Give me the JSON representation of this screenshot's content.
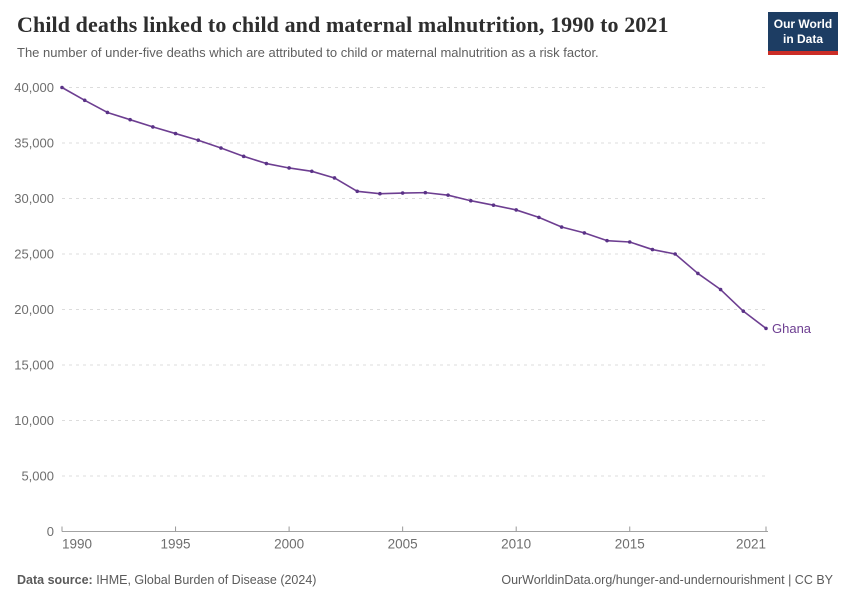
{
  "header": {
    "title": "Child deaths linked to child and maternal malnutrition, 1990 to 2021",
    "subtitle": "The number of under-five deaths which are attributed to child or maternal malnutrition as a risk factor.",
    "logo": {
      "line1": "Our World",
      "line2": "in Data",
      "bg_color": "#1d3d63",
      "accent_color": "#cb2d26"
    }
  },
  "chart_data": {
    "type": "line",
    "title": "Child deaths linked to child and maternal malnutrition, 1990 to 2021",
    "xlabel": "",
    "ylabel": "",
    "xlim": [
      1990,
      2021
    ],
    "ylim": [
      0,
      40000
    ],
    "x_ticks": [
      1990,
      1995,
      2000,
      2005,
      2010,
      2015,
      2021
    ],
    "y_ticks": [
      0,
      5000,
      10000,
      15000,
      20000,
      25000,
      30000,
      35000,
      40000
    ],
    "grid": "horizontal-dashed",
    "legend_position": "end-of-line-label",
    "series": [
      {
        "name": "Ghana",
        "color": "#6d3e91",
        "point_color": "#5a3287",
        "x": [
          1990,
          1991,
          1992,
          1993,
          1994,
          1995,
          1996,
          1997,
          1998,
          1999,
          2000,
          2001,
          2002,
          2003,
          2004,
          2005,
          2006,
          2007,
          2008,
          2009,
          2010,
          2011,
          2012,
          2013,
          2014,
          2015,
          2016,
          2017,
          2018,
          2019,
          2020,
          2021
        ],
        "values": [
          40000,
          38850,
          37750,
          37100,
          36450,
          35850,
          35250,
          34550,
          33800,
          33150,
          32750,
          32450,
          31850,
          30650,
          30430,
          30490,
          30530,
          30300,
          29800,
          29400,
          28970,
          28300,
          27430,
          26900,
          26200,
          26080,
          25400,
          25000,
          23250,
          21800,
          19850,
          18300
        ]
      }
    ],
    "end_label": "Ghana",
    "colors": {
      "gridline": "#dcdcdc",
      "axis_line": "#a3a3a3",
      "tick_mark": "#999999",
      "tick_label": "#6e6e6e"
    }
  },
  "footer": {
    "source_label": "Data source:",
    "source_text": " IHME, Global Burden of Disease (2024)",
    "credit": "OurWorldinData.org/hunger-and-undernourishment | CC BY"
  }
}
